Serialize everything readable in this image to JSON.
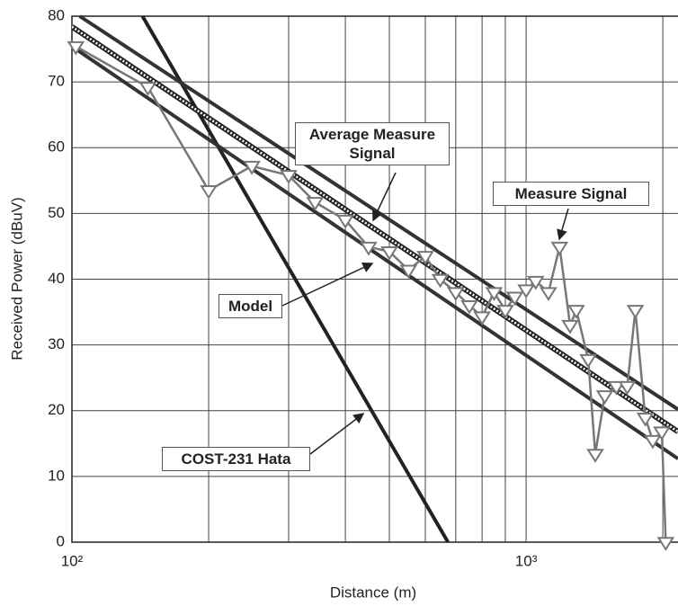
{
  "chart_data": {
    "type": "line",
    "x_label": "Distance (m)",
    "y_label": "Received Power (dBuV)",
    "xscale": "log",
    "xlim": [
      100,
      2160
    ],
    "ylim": [
      0,
      80
    ],
    "xticks": [
      {
        "value": 100,
        "label": "10²"
      },
      {
        "value": 1000,
        "label": "10³"
      }
    ],
    "xminorticks": [
      200,
      300,
      400,
      500,
      600,
      700,
      800,
      900,
      2000
    ],
    "yticks": [
      0,
      10,
      20,
      30,
      40,
      50,
      60,
      70,
      80
    ],
    "grid": true,
    "series": [
      {
        "name": "COST-231 Hata",
        "color": "#222222",
        "style": "solid",
        "x": [
          143,
          673
        ],
        "values": [
          80,
          0
        ]
      },
      {
        "color": "#333333",
        "style": "solid",
        "x": [
          104,
          2160
        ],
        "values": [
          80,
          20.2
        ]
      },
      {
        "name": "Average Measure Signal",
        "color": "#222222",
        "style": "dotted",
        "x": [
          100,
          2160
        ],
        "values": [
          78.4,
          16.8
        ]
      },
      {
        "name": "Model",
        "color": "#333333",
        "style": "solid",
        "x": [
          100,
          2160
        ],
        "values": [
          75.4,
          12.7
        ]
      },
      {
        "name": "Measure Signal",
        "color": "#777777",
        "style": "markers",
        "x": [
          102,
          147,
          200,
          249,
          300,
          343,
          400,
          450,
          500,
          551,
          600,
          647,
          700,
          750,
          800,
          850,
          900,
          944,
          1000,
          1050,
          1120,
          1185,
          1250,
          1290,
          1370,
          1420,
          1490,
          1580,
          1670,
          1740,
          1830,
          1900,
          1990,
          2030
        ],
        "values": [
          75.4,
          69.2,
          53.5,
          57.2,
          55.8,
          51.7,
          49,
          44.9,
          44.2,
          41.4,
          43.5,
          40,
          38,
          36,
          34.3,
          38,
          35.3,
          37.3,
          38.4,
          39.7,
          38,
          44.9,
          33,
          35.3,
          27.8,
          13.4,
          22.3,
          23.7,
          23.7,
          35.3,
          18.9,
          15.5,
          16.8,
          0
        ]
      }
    ]
  }
}
